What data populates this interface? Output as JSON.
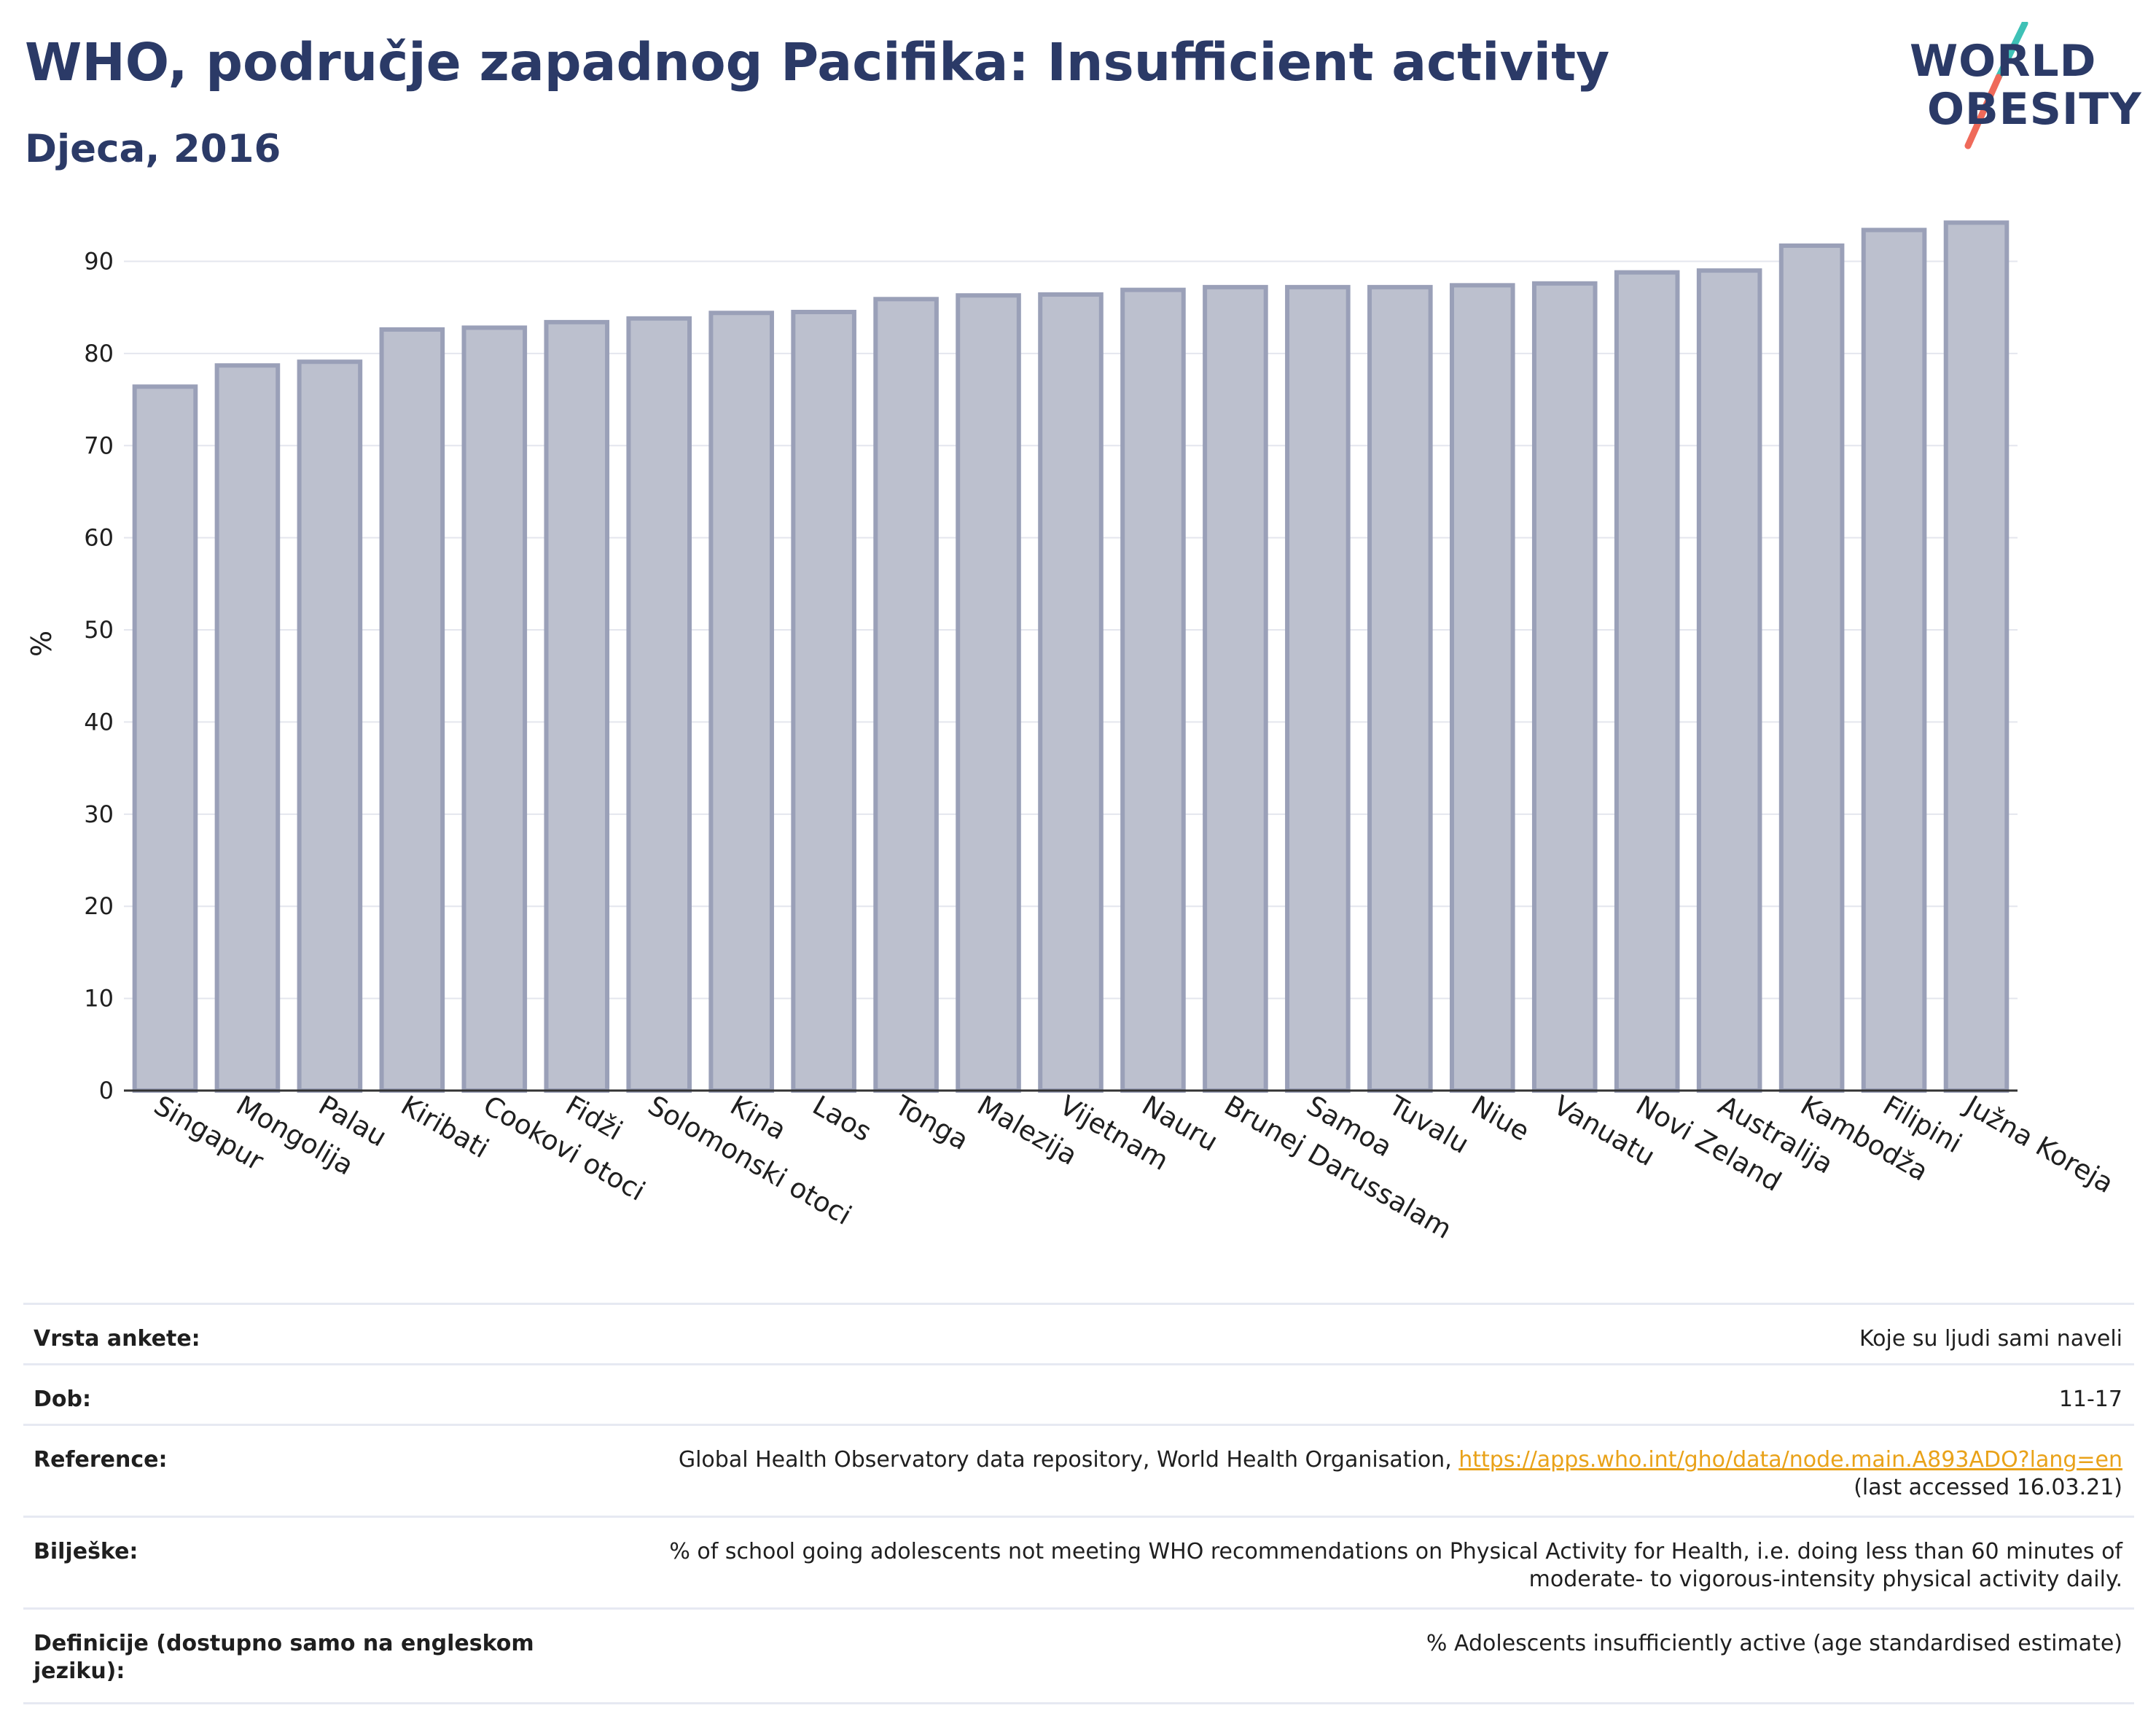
{
  "header": {
    "title": "WHO, područje zapadnog Pacifika: Insufficient activity",
    "subtitle": "Djeca, 2016"
  },
  "logo": {
    "line1": "WORLD",
    "line2": "OBESITY",
    "accent_teal": "#3ec1b6",
    "accent_coral": "#ef6a5a"
  },
  "chart_data": {
    "type": "bar",
    "ylabel": "%",
    "ylim": [
      0,
      97
    ],
    "yticks": [
      0,
      10,
      20,
      30,
      40,
      50,
      60,
      70,
      80,
      90
    ],
    "grid": true,
    "bar_color": "#bcc0ce",
    "bar_edge_color": "#9aa0b8",
    "categories": [
      "Singapur",
      "Mongolija",
      "Palau",
      "Kiribati",
      "Cookovi otoci",
      "Fidži",
      "Solomonski otoci",
      "Kina",
      "Laos",
      "Tonga",
      "Malezija",
      "Vijetnam",
      "Nauru",
      "Brunej Darussalam",
      "Samoa",
      "Tuvalu",
      "Niue",
      "Vanuatu",
      "Novi Zeland",
      "Australija",
      "Kambodža",
      "Filipini",
      "Južna Koreja"
    ],
    "values": [
      76.4,
      78.7,
      79.1,
      82.6,
      82.8,
      83.4,
      83.8,
      84.4,
      84.5,
      85.9,
      86.3,
      86.4,
      86.9,
      87.2,
      87.2,
      87.2,
      87.4,
      87.6,
      88.8,
      89.0,
      91.7,
      93.4,
      94.2
    ]
  },
  "info": {
    "rows": [
      {
        "label": "Vrsta ankete:",
        "value": "Koje su ljudi sami naveli"
      },
      {
        "label": "Dob:",
        "value": "11-17"
      },
      {
        "label": "Reference:",
        "value": "Global Health Observatory data repository, World Health Organisation, ",
        "link": "https://apps.who.int/gho/data/node.main.A893ADO?lang=en",
        "value2": "(last accessed 16.03.21)"
      },
      {
        "label": "Bilješke:",
        "value": "% of school going adolescents not meeting WHO recommendations on Physical Activity for Health, i.e. doing less than 60 minutes of moderate- to vigorous-intensity physical activity daily."
      },
      {
        "label": "Definicije (dostupno samo na engleskom jeziku):",
        "value": "% Adolescents insufficiently active (age standardised estimate)"
      }
    ]
  }
}
